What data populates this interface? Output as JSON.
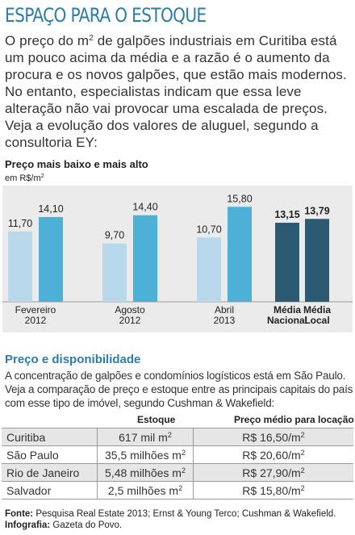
{
  "header": {
    "title": "ESPAÇO PARA O ESTOQUE",
    "intro_part1": "O preço do m",
    "intro_sup": "2",
    "intro_part2": " de galpões industriais em Curitiba está um pouco acima da média e a razão é o aumento da procura e os novos galpões, que estão mais modernos. No entanto, especialistas indicam que essa leve alteração não vai provocar uma escalada de preços. Veja a evolução dos valores de aluguel, segundo a consultoria EY:"
  },
  "chart_data": {
    "type": "bar",
    "title": "Preço mais baixo e mais alto",
    "unit_label": "em R$/m",
    "unit_sup": "2",
    "groups": [
      {
        "label_lines": [
          "Fevereiro",
          "2012"
        ],
        "bold": false,
        "values": [
          11.7,
          14.1
        ],
        "value_labels": [
          "11,70",
          "14,10"
        ]
      },
      {
        "label_lines": [
          "Agosto",
          "2012"
        ],
        "bold": false,
        "values": [
          9.7,
          14.4
        ],
        "value_labels": [
          "9,70",
          "14,40"
        ]
      },
      {
        "label_lines": [
          "Abril",
          "2013"
        ],
        "bold": false,
        "values": [
          10.7,
          15.8
        ],
        "value_labels": [
          "10,70",
          "15,80"
        ]
      },
      {
        "label_lines": [
          "Média",
          "Nacional"
        ],
        "bold": true,
        "values": [
          13.15
        ],
        "value_labels": [
          "13,15"
        ]
      },
      {
        "label_lines": [
          "Média",
          "Local"
        ],
        "bold": true,
        "values": [
          13.79
        ],
        "value_labels": [
          "13,79"
        ]
      }
    ],
    "colors": {
      "low": "#b8d8ec",
      "high": "#4db0d6",
      "average": "#2c5a72",
      "panel": "#ebebeb"
    }
  },
  "section": {
    "title": "Preço e disponibilidade",
    "text": "A concentração de galpões e condomínios logísticos está em São Paulo. Veja a comparação de preço e estoque entre as principais capitais do país com esse tipo de imóvel, segundo Cushman & Wakefield:"
  },
  "table": {
    "col_stock": "Estoque",
    "col_price": "Preço médio para locação",
    "rows": [
      {
        "city": "Curitiba",
        "stock": "617 mil m",
        "price": "R$ 16,50/m"
      },
      {
        "city": "São Paulo",
        "stock": "35,5 milhões m",
        "price": "R$ 20,60/m"
      },
      {
        "city": "Rio de Janeiro",
        "stock": "5,48 milhões m",
        "price": "R$ 27,90/m"
      },
      {
        "city": "Salvador",
        "stock": "2,5 milhões m",
        "price": "R$ 15,80/m"
      }
    ],
    "sup": "2"
  },
  "footer": {
    "source_label": "Fonte:",
    "source_text": " Pesquisa Real Estate 2013; Ernst & Young Terco; Cushman & Wakefield.",
    "infographic_label": "Infografia:",
    "infographic_text": " Gazeta do Povo."
  }
}
